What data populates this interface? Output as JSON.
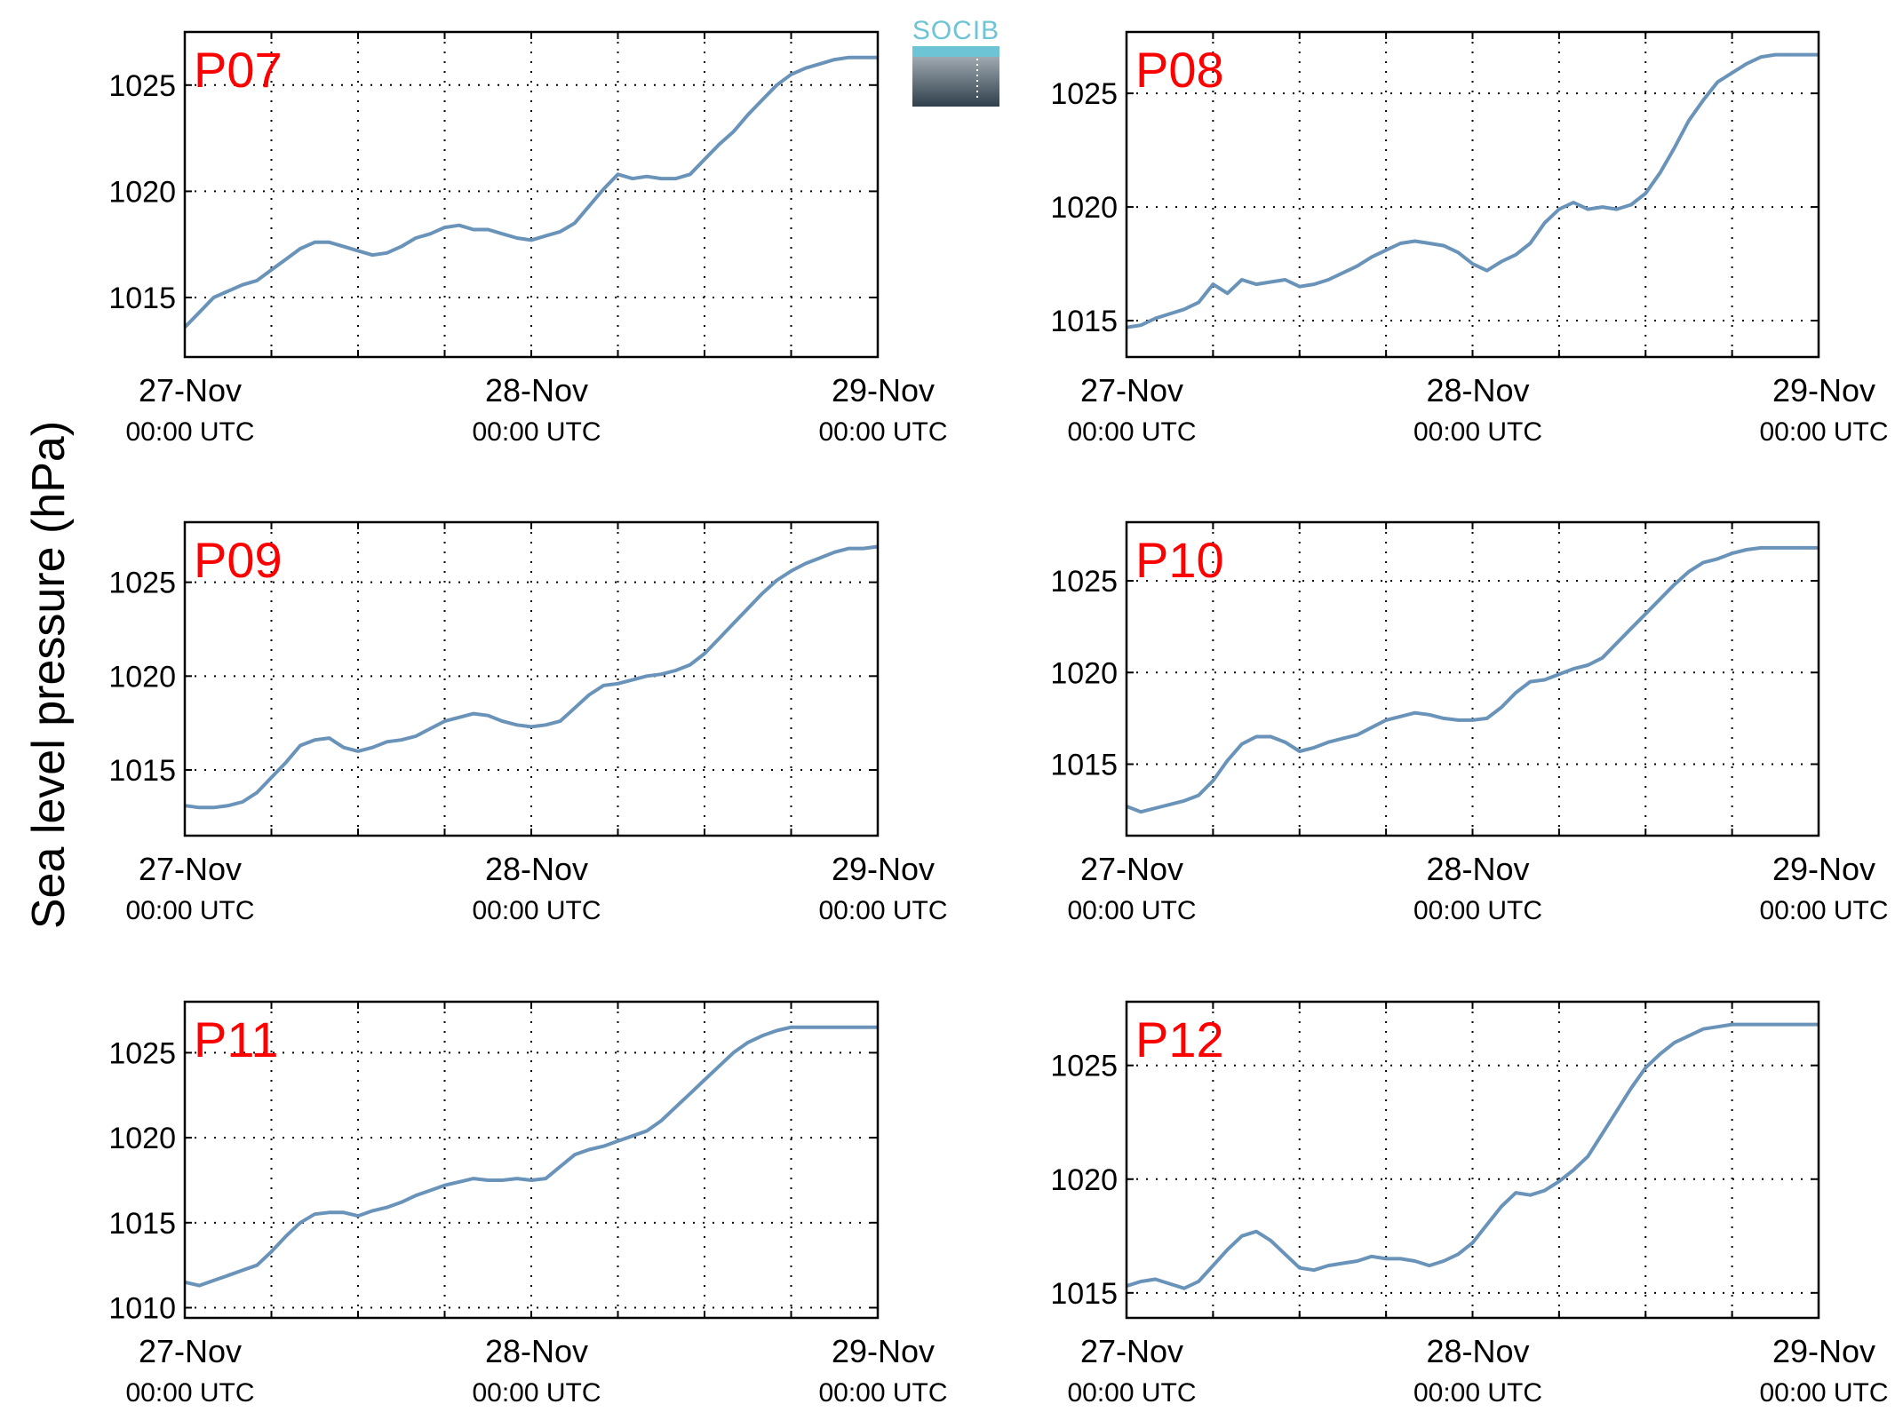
{
  "figure": {
    "ylabel": "Sea level pressure (hPa)",
    "logo_text": "SOCIB"
  },
  "colors": {
    "series": "#6a93b9",
    "panel_title": "#ff0000",
    "axis": "#000000",
    "logo_top": "#6cc4d4",
    "logo_bottom": "#2f3f4b"
  },
  "chart_data": [
    {
      "type": "line",
      "title": "P07",
      "x_tick_labels": [
        [
          "27-Nov",
          "00:00 UTC"
        ],
        [
          "28-Nov",
          "00:00 UTC"
        ],
        [
          "29-Nov",
          "00:00 UTC"
        ]
      ],
      "xlim": [
        0,
        48
      ],
      "ylim": [
        1012.2,
        1027.5
      ],
      "yticks": [
        1015,
        1020,
        1025
      ],
      "grid": true,
      "series": [
        {
          "x": [
            0,
            1,
            2,
            3,
            4,
            5,
            6,
            7,
            8,
            9,
            10,
            11,
            12,
            13,
            14,
            15,
            16,
            17,
            18,
            19,
            20,
            21,
            22,
            23,
            24,
            25,
            26,
            27,
            28,
            29,
            30,
            31,
            32,
            33,
            34,
            35,
            36,
            37,
            38,
            39,
            40,
            41,
            42,
            43,
            44,
            45,
            46,
            47,
            48
          ],
          "values": [
            1013.6,
            1014.3,
            1015.0,
            1015.3,
            1015.6,
            1015.8,
            1016.3,
            1016.8,
            1017.3,
            1017.6,
            1017.6,
            1017.4,
            1017.2,
            1017.0,
            1017.1,
            1017.4,
            1017.8,
            1018.0,
            1018.3,
            1018.4,
            1018.2,
            1018.2,
            1018.0,
            1017.8,
            1017.7,
            1017.9,
            1018.1,
            1018.5,
            1019.3,
            1020.1,
            1020.8,
            1020.6,
            1020.7,
            1020.6,
            1020.6,
            1020.8,
            1021.5,
            1022.2,
            1022.8,
            1023.6,
            1024.3,
            1025.0,
            1025.5,
            1025.8,
            1026.0,
            1026.2,
            1026.3,
            1026.3,
            1026.3
          ]
        }
      ]
    },
    {
      "type": "line",
      "title": "P08",
      "x_tick_labels": [
        [
          "27-Nov",
          "00:00 UTC"
        ],
        [
          "28-Nov",
          "00:00 UTC"
        ],
        [
          "29-Nov",
          "00:00 UTC"
        ]
      ],
      "xlim": [
        0,
        48
      ],
      "ylim": [
        1013.4,
        1027.7
      ],
      "yticks": [
        1015,
        1020,
        1025
      ],
      "grid": true,
      "series": [
        {
          "x": [
            0,
            1,
            2,
            3,
            4,
            5,
            6,
            7,
            8,
            9,
            10,
            11,
            12,
            13,
            14,
            15,
            16,
            17,
            18,
            19,
            20,
            21,
            22,
            23,
            24,
            25,
            26,
            27,
            28,
            29,
            30,
            31,
            32,
            33,
            34,
            35,
            36,
            37,
            38,
            39,
            40,
            41,
            42,
            43,
            44,
            45,
            46,
            47,
            48
          ],
          "values": [
            1014.7,
            1014.8,
            1015.1,
            1015.3,
            1015.5,
            1015.8,
            1016.6,
            1016.2,
            1016.8,
            1016.6,
            1016.7,
            1016.8,
            1016.5,
            1016.6,
            1016.8,
            1017.1,
            1017.4,
            1017.8,
            1018.1,
            1018.4,
            1018.5,
            1018.4,
            1018.3,
            1018.0,
            1017.5,
            1017.2,
            1017.6,
            1017.9,
            1018.4,
            1019.3,
            1019.9,
            1020.2,
            1019.9,
            1020.0,
            1019.9,
            1020.1,
            1020.6,
            1021.5,
            1022.6,
            1023.8,
            1024.7,
            1025.5,
            1025.9,
            1026.3,
            1026.6,
            1026.7,
            1026.7,
            1026.7,
            1026.7
          ]
        }
      ]
    },
    {
      "type": "line",
      "title": "P09",
      "x_tick_labels": [
        [
          "27-Nov",
          "00:00 UTC"
        ],
        [
          "28-Nov",
          "00:00 UTC"
        ],
        [
          "29-Nov",
          "00:00 UTC"
        ]
      ],
      "xlim": [
        0,
        48
      ],
      "ylim": [
        1011.5,
        1028.2
      ],
      "yticks": [
        1015,
        1020,
        1025
      ],
      "grid": true,
      "series": [
        {
          "x": [
            0,
            1,
            2,
            3,
            4,
            5,
            6,
            7,
            8,
            9,
            10,
            11,
            12,
            13,
            14,
            15,
            16,
            17,
            18,
            19,
            20,
            21,
            22,
            23,
            24,
            25,
            26,
            27,
            28,
            29,
            30,
            31,
            32,
            33,
            34,
            35,
            36,
            37,
            38,
            39,
            40,
            41,
            42,
            43,
            44,
            45,
            46,
            47,
            48
          ],
          "values": [
            1013.1,
            1013.0,
            1013.0,
            1013.1,
            1013.3,
            1013.8,
            1014.6,
            1015.4,
            1016.3,
            1016.6,
            1016.7,
            1016.2,
            1016.0,
            1016.2,
            1016.5,
            1016.6,
            1016.8,
            1017.2,
            1017.6,
            1017.8,
            1018.0,
            1017.9,
            1017.6,
            1017.4,
            1017.3,
            1017.4,
            1017.6,
            1018.3,
            1019.0,
            1019.5,
            1019.6,
            1019.8,
            1020.0,
            1020.1,
            1020.3,
            1020.6,
            1021.2,
            1022.0,
            1022.8,
            1023.6,
            1024.4,
            1025.1,
            1025.6,
            1026.0,
            1026.3,
            1026.6,
            1026.8,
            1026.8,
            1026.9
          ]
        }
      ]
    },
    {
      "type": "line",
      "title": "P10",
      "x_tick_labels": [
        [
          "27-Nov",
          "00:00 UTC"
        ],
        [
          "28-Nov",
          "00:00 UTC"
        ],
        [
          "29-Nov",
          "00:00 UTC"
        ]
      ],
      "xlim": [
        0,
        48
      ],
      "ylim": [
        1011.1,
        1028.2
      ],
      "yticks": [
        1015,
        1020,
        1025
      ],
      "grid": true,
      "series": [
        {
          "x": [
            0,
            1,
            2,
            3,
            4,
            5,
            6,
            7,
            8,
            9,
            10,
            11,
            12,
            13,
            14,
            15,
            16,
            17,
            18,
            19,
            20,
            21,
            22,
            23,
            24,
            25,
            26,
            27,
            28,
            29,
            30,
            31,
            32,
            33,
            34,
            35,
            36,
            37,
            38,
            39,
            40,
            41,
            42,
            43,
            44,
            45,
            46,
            47,
            48
          ],
          "values": [
            1012.7,
            1012.4,
            1012.6,
            1012.8,
            1013.0,
            1013.3,
            1014.1,
            1015.2,
            1016.1,
            1016.5,
            1016.5,
            1016.2,
            1015.7,
            1015.9,
            1016.2,
            1016.4,
            1016.6,
            1017.0,
            1017.4,
            1017.6,
            1017.8,
            1017.7,
            1017.5,
            1017.4,
            1017.4,
            1017.5,
            1018.1,
            1018.9,
            1019.5,
            1019.6,
            1019.9,
            1020.2,
            1020.4,
            1020.8,
            1021.6,
            1022.4,
            1023.2,
            1024.0,
            1024.8,
            1025.5,
            1026.0,
            1026.2,
            1026.5,
            1026.7,
            1026.8,
            1026.8,
            1026.8,
            1026.8,
            1026.8
          ]
        }
      ]
    },
    {
      "type": "line",
      "title": "P11",
      "x_tick_labels": [
        [
          "27-Nov",
          "00:00 UTC"
        ],
        [
          "28-Nov",
          "00:00 UTC"
        ],
        [
          "29-Nov",
          "00:00 UTC"
        ]
      ],
      "xlim": [
        0,
        48
      ],
      "ylim": [
        1009.4,
        1028.0
      ],
      "yticks": [
        1010,
        1015,
        1020,
        1025
      ],
      "grid": true,
      "series": [
        {
          "x": [
            0,
            1,
            2,
            3,
            4,
            5,
            6,
            7,
            8,
            9,
            10,
            11,
            12,
            13,
            14,
            15,
            16,
            17,
            18,
            19,
            20,
            21,
            22,
            23,
            24,
            25,
            26,
            27,
            28,
            29,
            30,
            31,
            32,
            33,
            34,
            35,
            36,
            37,
            38,
            39,
            40,
            41,
            42,
            43,
            44,
            45,
            46,
            47,
            48
          ],
          "values": [
            1011.5,
            1011.3,
            1011.6,
            1011.9,
            1012.2,
            1012.5,
            1013.3,
            1014.2,
            1015.0,
            1015.5,
            1015.6,
            1015.6,
            1015.4,
            1015.7,
            1015.9,
            1016.2,
            1016.6,
            1016.9,
            1017.2,
            1017.4,
            1017.6,
            1017.5,
            1017.5,
            1017.6,
            1017.5,
            1017.6,
            1018.3,
            1019.0,
            1019.3,
            1019.5,
            1019.8,
            1020.1,
            1020.4,
            1021.0,
            1021.8,
            1022.6,
            1023.4,
            1024.2,
            1025.0,
            1025.6,
            1026.0,
            1026.3,
            1026.5,
            1026.5,
            1026.5,
            1026.5,
            1026.5,
            1026.5,
            1026.5
          ]
        }
      ]
    },
    {
      "type": "line",
      "title": "P12",
      "x_tick_labels": [
        [
          "27-Nov",
          "00:00 UTC"
        ],
        [
          "28-Nov",
          "00:00 UTC"
        ],
        [
          "29-Nov",
          "00:00 UTC"
        ]
      ],
      "xlim": [
        0,
        48
      ],
      "ylim": [
        1013.9,
        1027.8
      ],
      "yticks": [
        1015,
        1020,
        1025
      ],
      "grid": true,
      "series": [
        {
          "x": [
            0,
            1,
            2,
            3,
            4,
            5,
            6,
            7,
            8,
            9,
            10,
            11,
            12,
            13,
            14,
            15,
            16,
            17,
            18,
            19,
            20,
            21,
            22,
            23,
            24,
            25,
            26,
            27,
            28,
            29,
            30,
            31,
            32,
            33,
            34,
            35,
            36,
            37,
            38,
            39,
            40,
            41,
            42,
            43,
            44,
            45,
            46,
            47,
            48
          ],
          "values": [
            1015.3,
            1015.5,
            1015.6,
            1015.4,
            1015.2,
            1015.5,
            1016.2,
            1016.9,
            1017.5,
            1017.7,
            1017.3,
            1016.7,
            1016.1,
            1016.0,
            1016.2,
            1016.3,
            1016.4,
            1016.6,
            1016.5,
            1016.5,
            1016.4,
            1016.2,
            1016.4,
            1016.7,
            1017.2,
            1018.0,
            1018.8,
            1019.4,
            1019.3,
            1019.5,
            1019.9,
            1020.4,
            1021.0,
            1022.0,
            1023.0,
            1024.0,
            1024.9,
            1025.5,
            1026.0,
            1026.3,
            1026.6,
            1026.7,
            1026.8,
            1026.8,
            1026.8,
            1026.8,
            1026.8,
            1026.8,
            1026.8
          ]
        }
      ]
    }
  ]
}
